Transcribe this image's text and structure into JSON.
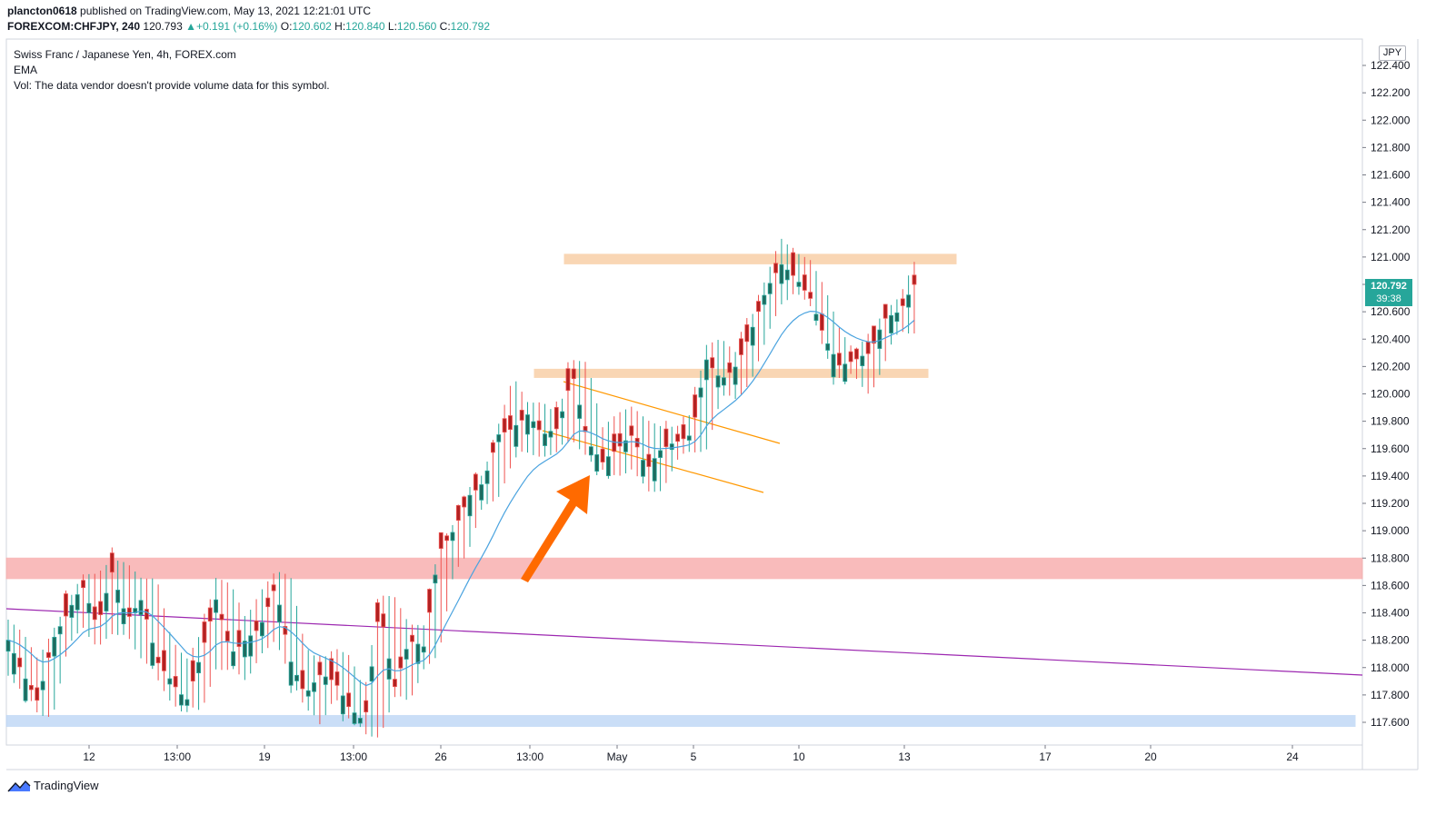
{
  "header": {
    "author": "plancton0618",
    "published_text": "published on TradingView.com, May 13, 2021 12:21:01 UTC",
    "symbol": "FOREXCOM:CHFJPY, 240",
    "last": "120.793",
    "change": "+0.191 (+0.16%)",
    "open_label": "O:",
    "open": "120.602",
    "high_label": "H:",
    "high": "120.840",
    "low_label": "L:",
    "low": "120.560",
    "close_label": "C:",
    "close": "120.792"
  },
  "legend": {
    "title": "Swiss Franc / Japanese Yen, 4h, FOREX.com",
    "ema": "EMA",
    "vol": "Vol: The data vendor doesn't provide volume data for this symbol."
  },
  "price_axis": {
    "currency": "JPY",
    "last_price": "120.792",
    "countdown": "39:38",
    "ticks": [
      "122.400",
      "122.200",
      "122.000",
      "121.800",
      "121.600",
      "121.400",
      "121.200",
      "121.000",
      "120.800",
      "120.600",
      "120.400",
      "120.200",
      "120.000",
      "119.800",
      "119.600",
      "119.400",
      "119.200",
      "119.000",
      "118.800",
      "118.600",
      "118.400",
      "118.200",
      "118.000",
      "117.800",
      "117.600"
    ]
  },
  "time_axis": {
    "ticks": [
      "12",
      "13:00",
      "19",
      "13:00",
      "26",
      "13:00",
      "May",
      "5",
      "10",
      "13",
      "17",
      "20",
      "24"
    ]
  },
  "footer": {
    "brand": "TradingView"
  },
  "colors": {
    "up": "#26a69a",
    "down": "#ef5350",
    "candle_up_body": "#1e6b5f",
    "candle_down_body": "#b22222",
    "ema": "#4aa3df",
    "trendline": "#9c27b0",
    "arrow": "#ff6a00",
    "resistance_zone": "#f7c99b",
    "support_zone_red": "#f8a5a5",
    "support_zone_blue": "#b9d3f5",
    "channel": "#ff9800"
  },
  "chart_data": {
    "type": "candlestick",
    "symbol": "CHFJPY",
    "interval": "4h",
    "ylim": [
      117.5,
      122.5
    ],
    "x_ticks": [
      "12",
      "13:00",
      "19",
      "13:00",
      "26",
      "13:00",
      "May",
      "5",
      "10",
      "13",
      "17",
      "20",
      "24"
    ],
    "y_ticks": [
      122.4,
      122.2,
      122.0,
      121.8,
      121.6,
      121.4,
      121.2,
      121.0,
      120.8,
      120.6,
      120.4,
      120.2,
      120.0,
      119.8,
      119.6,
      119.4,
      119.2,
      119.0,
      118.8,
      118.6,
      118.4,
      118.2,
      118.0,
      117.8,
      117.6
    ],
    "ohlc_waypoints": [
      [
        118.1,
        118.35,
        118.0,
        118.2
      ],
      [
        118.2,
        118.25,
        117.85,
        117.95
      ],
      [
        117.95,
        118.05,
        117.7,
        117.75
      ],
      [
        117.75,
        118.25,
        117.7,
        118.2
      ],
      [
        118.2,
        118.45,
        118.15,
        118.4
      ],
      [
        118.4,
        118.65,
        118.35,
        118.6
      ],
      [
        118.6,
        118.65,
        118.2,
        118.3
      ],
      [
        118.3,
        118.75,
        118.25,
        118.7
      ],
      [
        118.7,
        118.72,
        118.3,
        118.35
      ],
      [
        118.35,
        118.6,
        118.1,
        118.5
      ],
      [
        118.5,
        118.6,
        117.95,
        118.05
      ],
      [
        118.05,
        118.15,
        117.8,
        117.9
      ],
      [
        117.9,
        118.0,
        117.7,
        117.75
      ],
      [
        117.75,
        118.2,
        117.72,
        118.1
      ],
      [
        118.1,
        118.6,
        118.05,
        118.5
      ],
      [
        118.5,
        118.55,
        118.0,
        118.1
      ],
      [
        118.1,
        118.3,
        117.95,
        118.2
      ],
      [
        118.2,
        118.5,
        118.15,
        118.3
      ],
      [
        118.3,
        118.65,
        118.2,
        118.6
      ],
      [
        118.6,
        118.62,
        118.0,
        118.05
      ],
      [
        118.05,
        118.1,
        117.75,
        117.8
      ],
      [
        117.8,
        118.0,
        117.6,
        117.95
      ],
      [
        117.95,
        118.1,
        117.85,
        117.9
      ],
      [
        117.9,
        118.05,
        117.65,
        117.7
      ],
      [
        117.7,
        117.8,
        117.55,
        117.6
      ],
      [
        117.6,
        118.5,
        117.55,
        118.45
      ],
      [
        118.45,
        118.5,
        117.8,
        117.85
      ],
      [
        117.85,
        118.3,
        117.8,
        118.2
      ],
      [
        118.2,
        118.3,
        118.05,
        118.15
      ],
      [
        118.15,
        118.9,
        118.1,
        118.85
      ],
      [
        118.85,
        119.05,
        118.75,
        119.0
      ],
      [
        119.0,
        119.3,
        118.9,
        119.25
      ],
      [
        119.25,
        119.4,
        119.2,
        119.35
      ],
      [
        119.35,
        119.75,
        119.3,
        119.7
      ],
      [
        119.7,
        120.1,
        119.55,
        119.75
      ],
      [
        119.75,
        119.9,
        119.6,
        119.85
      ],
      [
        119.85,
        119.9,
        119.6,
        119.7
      ],
      [
        119.7,
        119.8,
        119.6,
        119.75
      ],
      [
        119.75,
        120.2,
        119.7,
        120.15
      ],
      [
        120.15,
        120.18,
        119.6,
        119.65
      ],
      [
        119.65,
        119.7,
        119.45,
        119.5
      ],
      [
        119.5,
        119.8,
        119.45,
        119.6
      ],
      [
        119.6,
        119.85,
        119.5,
        119.7
      ],
      [
        119.7,
        119.75,
        119.3,
        119.45
      ],
      [
        119.45,
        119.7,
        119.35,
        119.6
      ],
      [
        119.6,
        119.7,
        119.55,
        119.65
      ],
      [
        119.65,
        119.8,
        119.6,
        119.7
      ],
      [
        119.7,
        120.3,
        119.65,
        120.25
      ],
      [
        120.25,
        120.35,
        120.0,
        120.1
      ],
      [
        120.1,
        120.25,
        120.0,
        120.2
      ],
      [
        120.2,
        120.5,
        120.15,
        120.45
      ],
      [
        120.45,
        120.8,
        120.4,
        120.75
      ],
      [
        120.75,
        121.1,
        120.7,
        120.95
      ],
      [
        120.95,
        121.0,
        120.8,
        120.85
      ],
      [
        120.85,
        120.95,
        120.65,
        120.7
      ],
      [
        120.7,
        120.75,
        120.35,
        120.4
      ],
      [
        120.4,
        120.45,
        120.15,
        120.2
      ],
      [
        120.2,
        120.3,
        120.15,
        120.25
      ],
      [
        120.25,
        120.45,
        120.05,
        120.3
      ],
      [
        120.3,
        120.6,
        120.25,
        120.55
      ],
      [
        120.55,
        120.7,
        120.5,
        120.6
      ],
      [
        120.6,
        120.95,
        120.5,
        120.8
      ]
    ],
    "ema_label": "EMA",
    "zones": [
      {
        "name": "resistance-upper",
        "from": 120.95,
        "to": 121.02
      },
      {
        "name": "resistance-lower",
        "from": 120.12,
        "to": 120.18
      },
      {
        "name": "support-red",
        "from": 118.65,
        "to": 118.8
      },
      {
        "name": "support-blue",
        "from": 117.57,
        "to": 117.65
      }
    ]
  }
}
